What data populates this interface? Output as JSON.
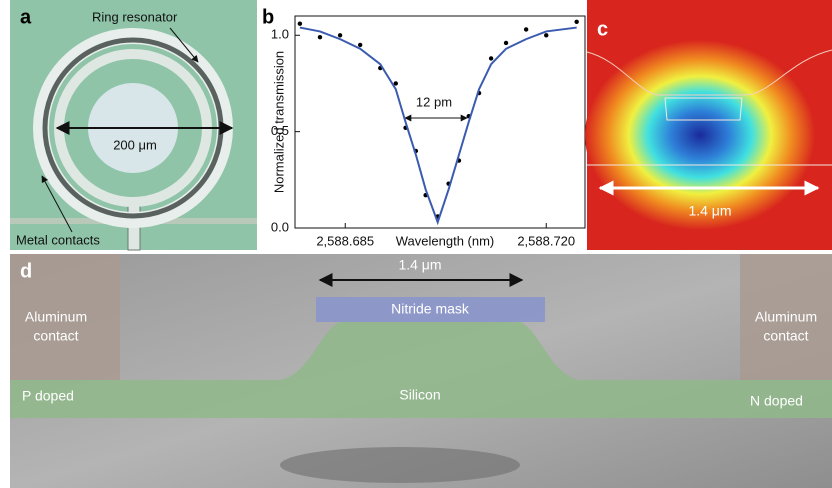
{
  "panel_a": {
    "letter": "a",
    "ring_label": "Ring resonator",
    "diameter_label": "200 μm",
    "contacts_label": "Metal contacts"
  },
  "chart_data": {
    "type": "line",
    "letter": "b",
    "x_label": "Wavelength (nm)",
    "y_label": "Normalized transmission",
    "annotation": "12 pm",
    "xlim": [
      2588.67625,
      2588.72675
    ],
    "ylim": [
      0,
      1.1
    ],
    "xticks": [
      {
        "value": 2588.685,
        "label": "2,588.685"
      },
      {
        "value": 2588.72,
        "label": "2,588.720"
      }
    ],
    "yticks": [
      {
        "value": 0,
        "label": "0.0"
      },
      {
        "value": 0.5,
        "label": "0.5"
      },
      {
        "value": 1,
        "label": "1.0"
      }
    ],
    "x": [
      2588.6771,
      2588.6806,
      2588.6841,
      2588.6876,
      2588.6911,
      2588.6938,
      2588.6955,
      2588.6973,
      2588.699,
      2588.7011,
      2588.703,
      2588.7048,
      2588.7065,
      2588.7083,
      2588.7104,
      2588.713,
      2588.7165,
      2588.72,
      2588.7253
    ],
    "series": [
      {
        "kind": "scatter",
        "color": "#000000",
        "values": [
          1.06,
          0.99,
          1.0,
          0.95,
          0.83,
          0.75,
          0.52,
          0.4,
          0.17,
          0.06,
          0.23,
          0.35,
          0.58,
          0.7,
          0.88,
          0.96,
          1.03,
          1.0,
          1.07
        ]
      },
      {
        "kind": "line",
        "color": "#3a5bb0",
        "values": [
          1.04,
          1.02,
          0.98,
          0.93,
          0.85,
          0.72,
          0.55,
          0.38,
          0.2,
          0.03,
          0.2,
          0.38,
          0.55,
          0.72,
          0.85,
          0.93,
          0.98,
          1.02,
          1.04
        ]
      }
    ]
  },
  "panel_c": {
    "letter": "c",
    "width_label": "1.4 μm"
  },
  "panel_d": {
    "letter": "d",
    "width_label": "1.4 μm",
    "mask_label": "Nitride mask",
    "contact_left": [
      "Aluminum",
      "contact"
    ],
    "contact_right": [
      "Aluminum",
      "contact"
    ],
    "silicon_label": "Silicon",
    "p_label": "P doped",
    "n_label": "N doped"
  }
}
